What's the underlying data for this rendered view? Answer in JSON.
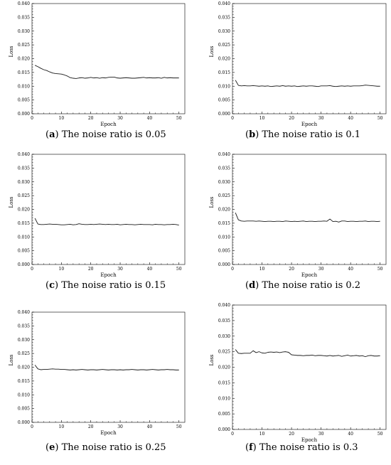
{
  "chart_data": [
    {
      "type": "line",
      "panel_letter": "a",
      "caption": "The noise ratio is 0.05",
      "xlabel": "Epoch",
      "ylabel": "Loss",
      "xlim": [
        0,
        52
      ],
      "ylim": [
        0.0,
        0.04
      ],
      "xticks": [
        0,
        10,
        20,
        30,
        40,
        50
      ],
      "yticks": [
        "0.000",
        "0.005",
        "0.010",
        "0.015",
        "0.020",
        "0.025",
        "0.030",
        "0.035",
        "0.040"
      ],
      "grid": false,
      "series": [
        {
          "x": [
            1,
            2,
            3,
            4,
            5,
            6,
            7,
            8,
            9,
            10,
            11,
            12,
            13,
            14,
            15,
            16,
            17,
            18,
            19,
            20,
            21,
            22,
            23,
            24,
            25,
            26,
            27,
            28,
            29,
            30,
            31,
            32,
            33,
            34,
            35,
            36,
            37,
            38,
            39,
            40,
            41,
            42,
            43,
            44,
            45,
            46,
            47,
            48,
            49,
            50
          ],
          "values": [
            0.0176,
            0.0171,
            0.0165,
            0.016,
            0.0157,
            0.0152,
            0.0148,
            0.0146,
            0.0145,
            0.0144,
            0.0141,
            0.0137,
            0.0131,
            0.0129,
            0.0128,
            0.013,
            0.0131,
            0.0129,
            0.013,
            0.0132,
            0.013,
            0.0131,
            0.0129,
            0.0131,
            0.013,
            0.0132,
            0.0133,
            0.0133,
            0.013,
            0.0129,
            0.013,
            0.0131,
            0.013,
            0.0129,
            0.0129,
            0.013,
            0.0131,
            0.0132,
            0.013,
            0.0131,
            0.013,
            0.013,
            0.0131,
            0.0129,
            0.0132,
            0.013,
            0.0131,
            0.013,
            0.013,
            0.013
          ]
        }
      ]
    },
    {
      "type": "line",
      "panel_letter": "b",
      "caption": "The noise ratio is 0.1",
      "xlabel": "Epoch",
      "ylabel": "Loss",
      "xlim": [
        0,
        52
      ],
      "ylim": [
        0.0,
        0.04
      ],
      "xticks": [
        0,
        10,
        20,
        30,
        40,
        50
      ],
      "yticks": [
        "0.000",
        "0.005",
        "0.010",
        "0.015",
        "0.020",
        "0.025",
        "0.030",
        "0.035",
        "0.040"
      ],
      "grid": false,
      "series": [
        {
          "x": [
            1,
            2,
            3,
            4,
            5,
            6,
            7,
            8,
            9,
            10,
            11,
            12,
            13,
            14,
            15,
            16,
            17,
            18,
            19,
            20,
            21,
            22,
            23,
            24,
            25,
            26,
            27,
            28,
            29,
            30,
            31,
            32,
            33,
            34,
            35,
            36,
            37,
            38,
            39,
            40,
            41,
            42,
            43,
            44,
            45,
            46,
            47,
            48,
            49,
            50
          ],
          "values": [
            0.0122,
            0.0103,
            0.0101,
            0.0102,
            0.0101,
            0.0101,
            0.0102,
            0.0101,
            0.01,
            0.0101,
            0.01,
            0.0101,
            0.0099,
            0.01,
            0.0101,
            0.01,
            0.0102,
            0.01,
            0.0101,
            0.01,
            0.0101,
            0.0099,
            0.01,
            0.0101,
            0.01,
            0.0101,
            0.0101,
            0.01,
            0.0099,
            0.0101,
            0.0101,
            0.0101,
            0.0102,
            0.01,
            0.0099,
            0.01,
            0.0101,
            0.01,
            0.0101,
            0.01,
            0.0101,
            0.0101,
            0.0101,
            0.0102,
            0.0104,
            0.0103,
            0.0102,
            0.0101,
            0.01,
            0.01
          ]
        }
      ]
    },
    {
      "type": "line",
      "panel_letter": "c",
      "caption": "The noise ratio is 0.15",
      "xlabel": "Epoch",
      "ylabel": "Loss",
      "xlim": [
        0,
        52
      ],
      "ylim": [
        0.0,
        0.04
      ],
      "xticks": [
        0,
        10,
        20,
        30,
        40,
        50
      ],
      "yticks": [
        "0.000",
        "0.005",
        "0.010",
        "0.015",
        "0.020",
        "0.025",
        "0.030",
        "0.035",
        "0.040"
      ],
      "grid": false,
      "series": [
        {
          "x": [
            1,
            2,
            3,
            4,
            5,
            6,
            7,
            8,
            9,
            10,
            11,
            12,
            13,
            14,
            15,
            16,
            17,
            18,
            19,
            20,
            21,
            22,
            23,
            24,
            25,
            26,
            27,
            28,
            29,
            30,
            31,
            32,
            33,
            34,
            35,
            36,
            37,
            38,
            39,
            40,
            41,
            42,
            43,
            44,
            45,
            46,
            47,
            48,
            49,
            50
          ],
          "values": [
            0.0168,
            0.0147,
            0.0145,
            0.0145,
            0.0146,
            0.0147,
            0.0146,
            0.0146,
            0.0145,
            0.0144,
            0.0144,
            0.0145,
            0.0146,
            0.0144,
            0.0145,
            0.0148,
            0.0146,
            0.0145,
            0.0145,
            0.0146,
            0.0145,
            0.0146,
            0.0147,
            0.0146,
            0.0145,
            0.0146,
            0.0145,
            0.0145,
            0.0146,
            0.0144,
            0.0145,
            0.0146,
            0.0145,
            0.0145,
            0.0144,
            0.0145,
            0.0146,
            0.0145,
            0.0145,
            0.0145,
            0.0144,
            0.0146,
            0.0145,
            0.0145,
            0.0144,
            0.0145,
            0.0145,
            0.0146,
            0.0145,
            0.0143
          ]
        }
      ]
    },
    {
      "type": "line",
      "panel_letter": "d",
      "caption": "The noise ratio is 0.2",
      "xlabel": "Epoch",
      "ylabel": "Loss",
      "xlim": [
        0,
        52
      ],
      "ylim": [
        0.0,
        0.04
      ],
      "xticks": [
        0,
        10,
        20,
        30,
        40,
        50
      ],
      "yticks": [
        "0.000",
        "0.005",
        "0.010",
        "0.015",
        "0.020",
        "0.025",
        "0.030",
        "0.035",
        "0.040"
      ],
      "grid": false,
      "series": [
        {
          "x": [
            1,
            2,
            3,
            4,
            5,
            6,
            7,
            8,
            9,
            10,
            11,
            12,
            13,
            14,
            15,
            16,
            17,
            18,
            19,
            20,
            21,
            22,
            23,
            24,
            25,
            26,
            27,
            28,
            29,
            30,
            31,
            32,
            33,
            34,
            35,
            36,
            37,
            38,
            39,
            40,
            41,
            42,
            43,
            44,
            45,
            46,
            47,
            48,
            49,
            50
          ],
          "values": [
            0.0188,
            0.0162,
            0.0158,
            0.0157,
            0.0158,
            0.0158,
            0.0158,
            0.0157,
            0.0158,
            0.0157,
            0.0156,
            0.0157,
            0.0157,
            0.0156,
            0.0157,
            0.0157,
            0.0156,
            0.0158,
            0.0157,
            0.0156,
            0.0157,
            0.0156,
            0.0157,
            0.0158,
            0.0156,
            0.0157,
            0.0157,
            0.0156,
            0.0157,
            0.0157,
            0.0158,
            0.0157,
            0.0165,
            0.0156,
            0.0157,
            0.0154,
            0.0158,
            0.0158,
            0.0156,
            0.0157,
            0.0157,
            0.0156,
            0.0157,
            0.0157,
            0.0158,
            0.0156,
            0.0157,
            0.0157,
            0.0156,
            0.0157
          ]
        }
      ]
    },
    {
      "type": "line",
      "panel_letter": "e",
      "caption": "The noise ratio is 0.25",
      "xlabel": "Epoch",
      "ylabel": "Loss",
      "xlim": [
        0,
        52
      ],
      "ylim": [
        0.0,
        0.04
      ],
      "xticks": [
        0,
        10,
        20,
        30,
        40,
        50
      ],
      "yticks": [
        "0.000",
        "0.005",
        "0.010",
        "0.015",
        "0.020",
        "0.025",
        "0.030",
        "0.035",
        "0.040"
      ],
      "grid": false,
      "series": [
        {
          "x": [
            1,
            2,
            3,
            4,
            5,
            6,
            7,
            8,
            9,
            10,
            11,
            12,
            13,
            14,
            15,
            16,
            17,
            18,
            19,
            20,
            21,
            22,
            23,
            24,
            25,
            26,
            27,
            28,
            29,
            30,
            31,
            32,
            33,
            34,
            35,
            36,
            37,
            38,
            39,
            40,
            41,
            42,
            43,
            44,
            45,
            46,
            47,
            48,
            49,
            50
          ],
          "values": [
            0.0208,
            0.0194,
            0.0191,
            0.0192,
            0.0192,
            0.0193,
            0.0194,
            0.0193,
            0.0193,
            0.0192,
            0.0192,
            0.0191,
            0.019,
            0.0191,
            0.019,
            0.0191,
            0.0192,
            0.0191,
            0.019,
            0.0191,
            0.0191,
            0.019,
            0.0191,
            0.0192,
            0.0191,
            0.019,
            0.0191,
            0.0191,
            0.019,
            0.0191,
            0.019,
            0.0191,
            0.0191,
            0.0192,
            0.0191,
            0.019,
            0.0191,
            0.0191,
            0.019,
            0.0191,
            0.0192,
            0.0191,
            0.019,
            0.0191,
            0.0191,
            0.0192,
            0.0191,
            0.0191,
            0.019,
            0.019
          ]
        }
      ]
    },
    {
      "type": "line",
      "panel_letter": "f",
      "caption": "The noise ratio is 0.3",
      "xlabel": "Epoch",
      "ylabel": "Loss",
      "xlim": [
        0,
        52
      ],
      "ylim": [
        0.0,
        0.04
      ],
      "xticks": [
        0,
        10,
        20,
        30,
        40,
        50
      ],
      "yticks": [
        "0.000",
        "0.005",
        "0.010",
        "0.015",
        "0.020",
        "0.025",
        "0.030",
        "0.035",
        "0.040"
      ],
      "grid": false,
      "series": [
        {
          "x": [
            1,
            2,
            3,
            4,
            5,
            6,
            7,
            8,
            9,
            10,
            11,
            12,
            13,
            14,
            15,
            16,
            17,
            18,
            19,
            20,
            21,
            22,
            23,
            24,
            25,
            26,
            27,
            28,
            29,
            30,
            31,
            32,
            33,
            34,
            35,
            36,
            37,
            38,
            39,
            40,
            41,
            42,
            43,
            44,
            45,
            46,
            47,
            48,
            49,
            50
          ],
          "values": [
            0.0257,
            0.0245,
            0.0244,
            0.0245,
            0.0245,
            0.0245,
            0.0253,
            0.0247,
            0.025,
            0.0246,
            0.0245,
            0.0248,
            0.0249,
            0.0248,
            0.0249,
            0.0247,
            0.0249,
            0.025,
            0.0248,
            0.024,
            0.0239,
            0.0238,
            0.0238,
            0.0237,
            0.0238,
            0.0238,
            0.0239,
            0.0237,
            0.0238,
            0.0238,
            0.0237,
            0.0236,
            0.0238,
            0.0236,
            0.0237,
            0.0238,
            0.0235,
            0.0237,
            0.0239,
            0.0236,
            0.0237,
            0.0238,
            0.0236,
            0.0237,
            0.0234,
            0.0237,
            0.0238,
            0.0236,
            0.0236,
            0.0237
          ]
        }
      ]
    }
  ]
}
